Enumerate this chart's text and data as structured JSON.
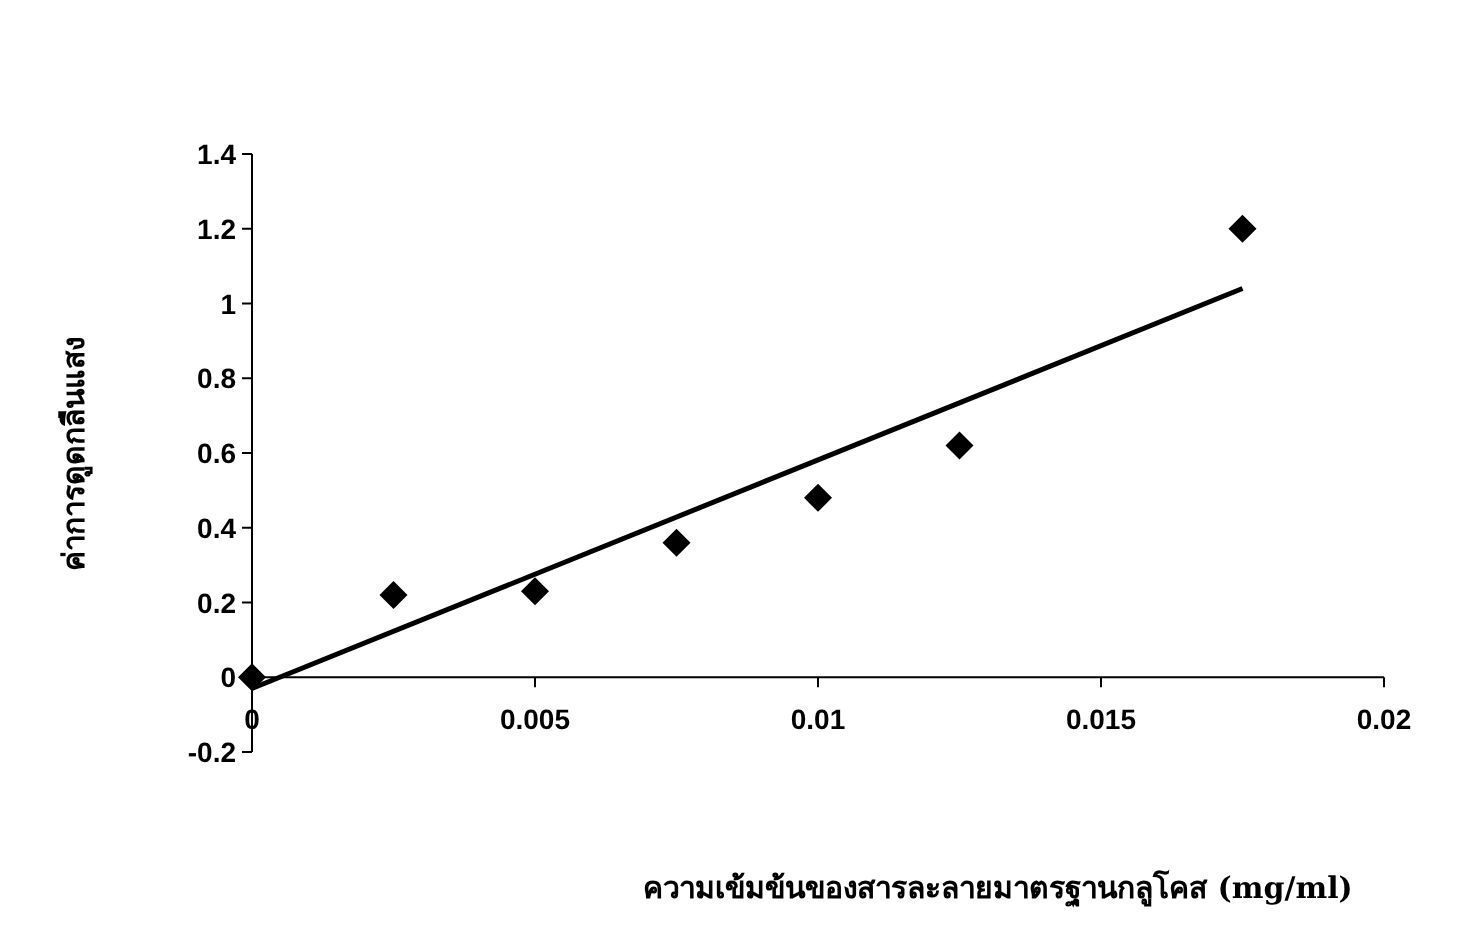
{
  "chart_data": {
    "type": "scatter",
    "xlabel": "ความเข้มข้นของสารละลายมาตรฐานกลูโคส (mg/ml)",
    "ylabel": "ค่าการดูดกลืนแสง",
    "xlim": [
      0,
      0.02
    ],
    "ylim": [
      -0.2,
      1.4
    ],
    "xticks": [
      0,
      0.005,
      0.01,
      0.015,
      0.02
    ],
    "yticks": [
      -0.2,
      0,
      0.2,
      0.4,
      0.6,
      0.8,
      1,
      1.2,
      1.4
    ],
    "grid": false,
    "series": [
      {
        "marker": "diamond",
        "color": "#000000",
        "x": [
          0,
          0.0025,
          0.005,
          0.0075,
          0.01,
          0.0125,
          0.0175
        ],
        "values": [
          0,
          0.22,
          0.23,
          0.36,
          0.48,
          0.62,
          1.2
        ]
      },
      {
        "type": "line",
        "marker": "none",
        "line_style": "solid",
        "color": "#000000",
        "x": [
          0,
          0.0175
        ],
        "values": [
          -0.03,
          1.04
        ]
      }
    ]
  }
}
